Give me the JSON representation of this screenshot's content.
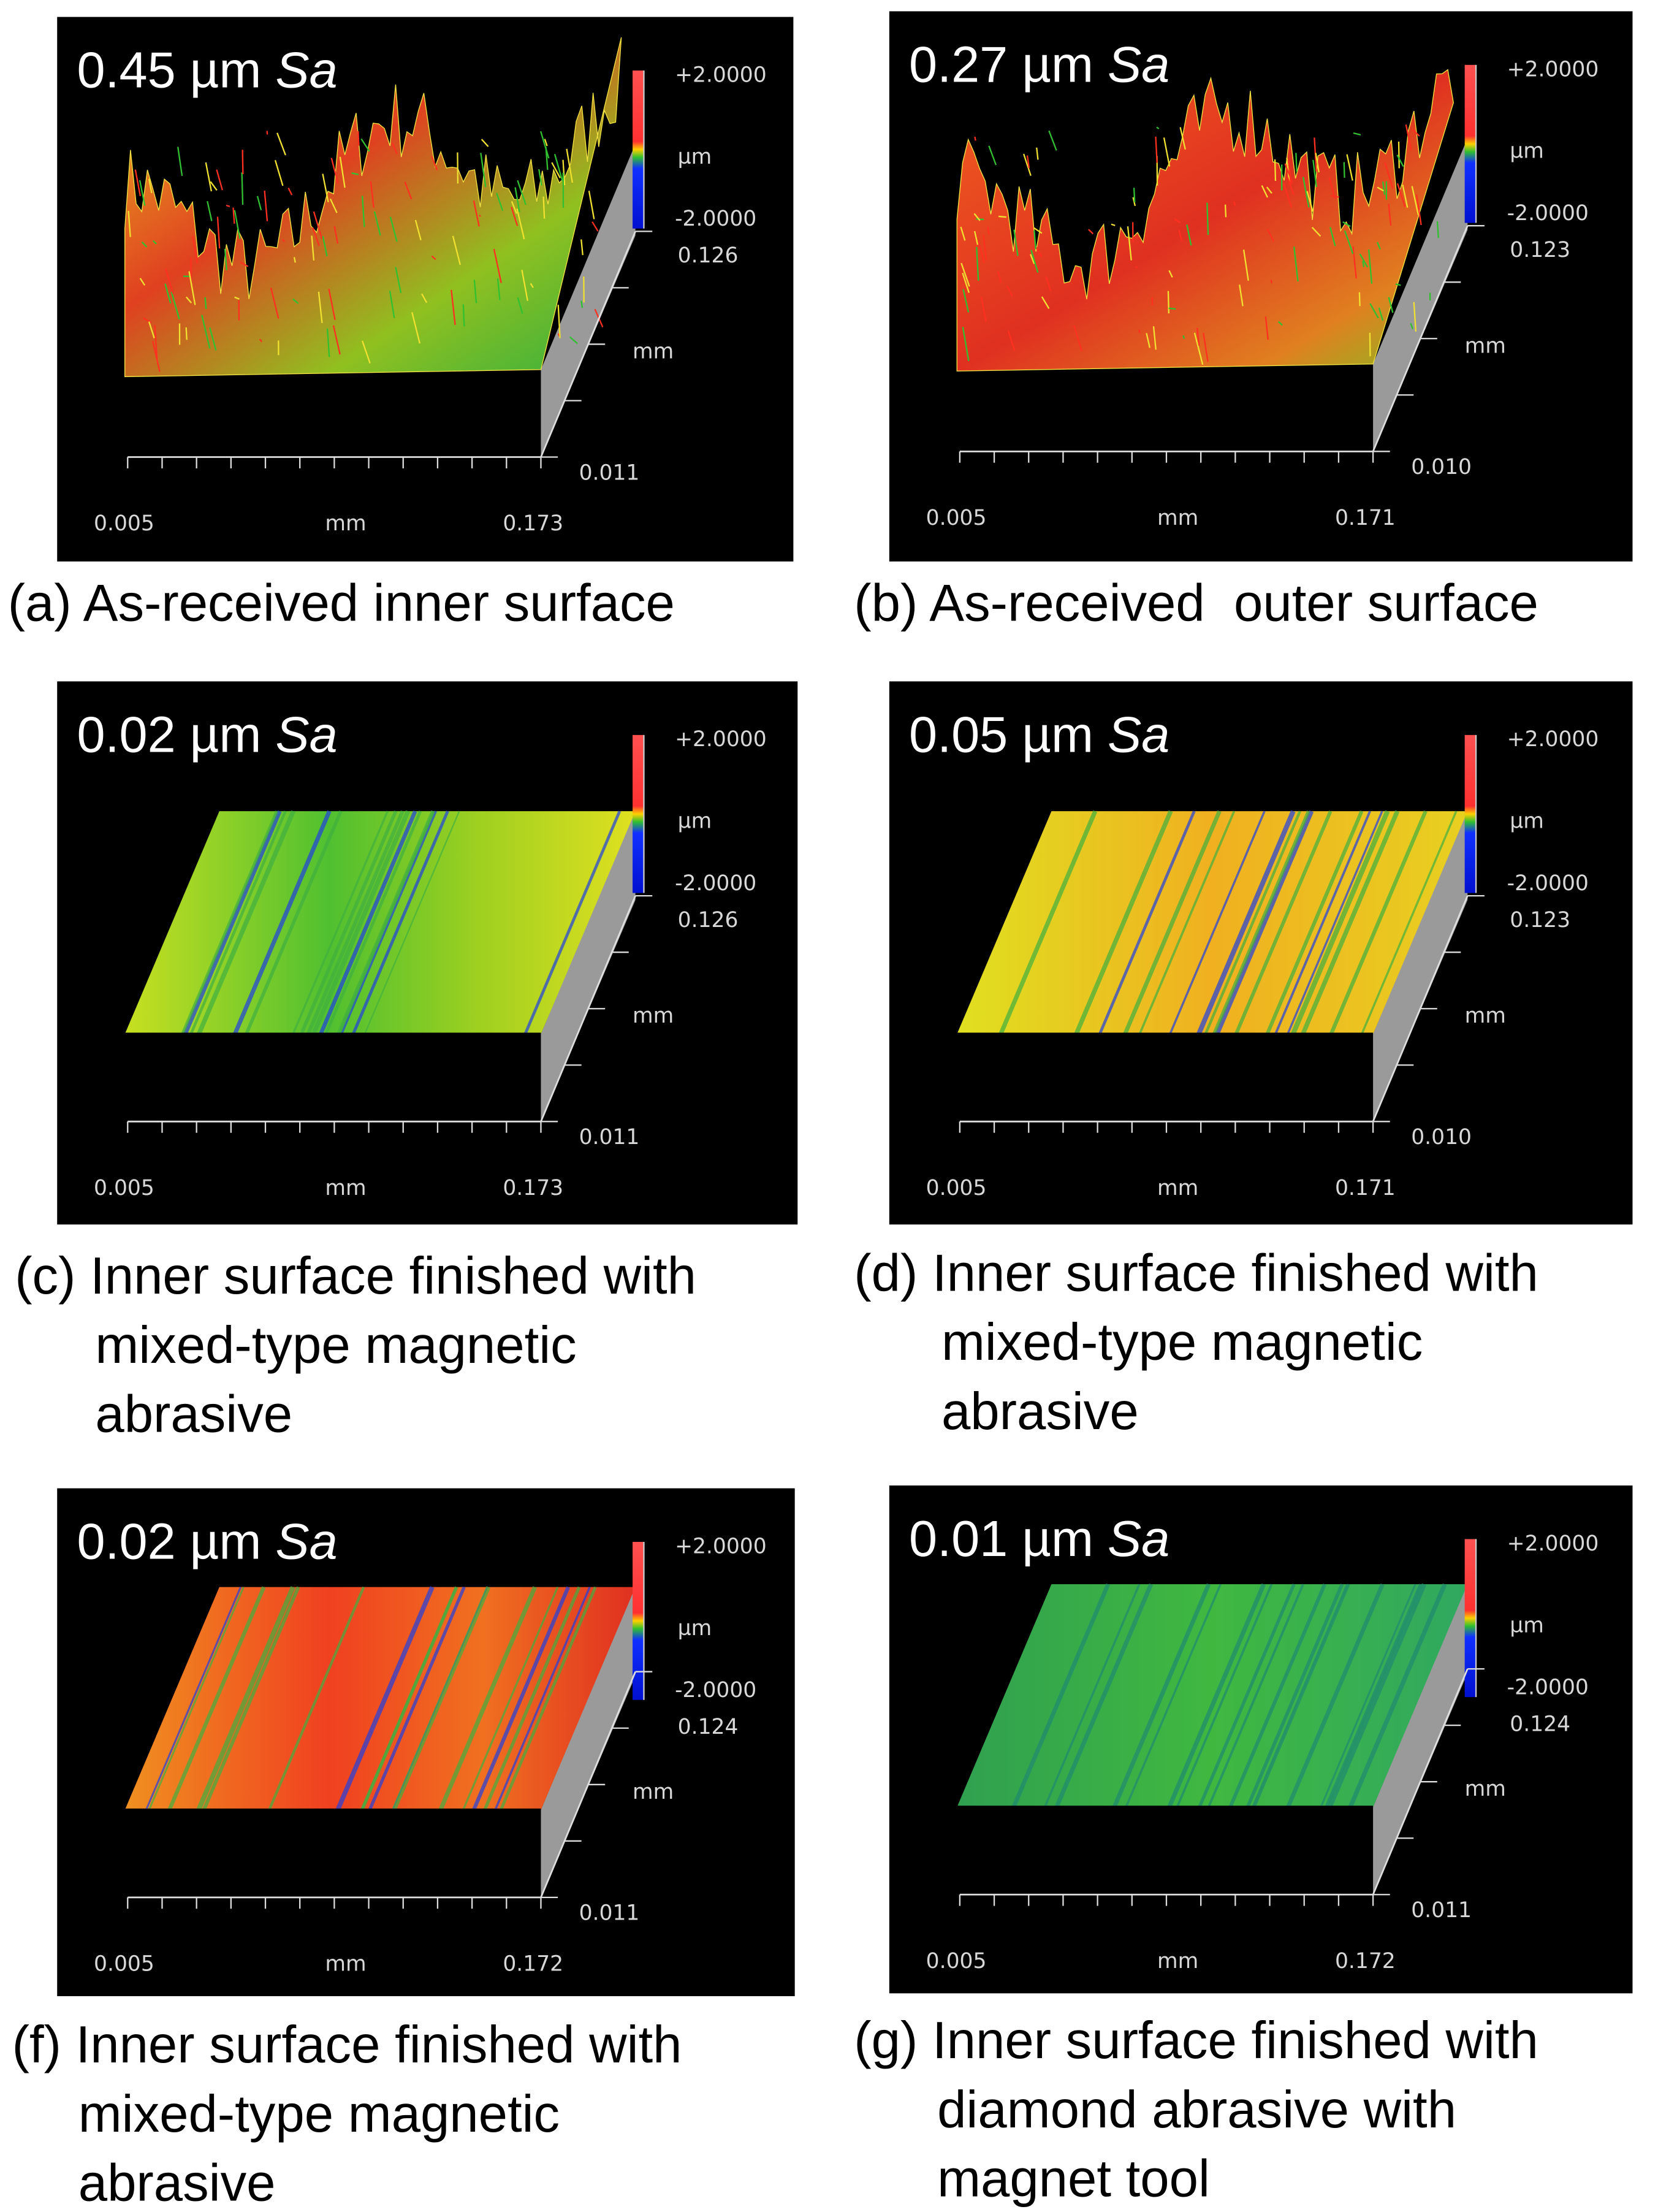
{
  "panels": [
    {
      "sa_value": "0.45 µm",
      "sa_unit": "Sa",
      "scale_max": "+2.0000",
      "scale_unit": "µm",
      "scale_min": "-2.0000",
      "z_max": "0.126",
      "z_unit": "mm",
      "z_min": "0.011",
      "x_min": "0.005",
      "x_unit": "mm",
      "x_max": "0.173",
      "caption": [
        "(a) As-received inner surface"
      ]
    },
    {
      "sa_value": "0.27 µm",
      "sa_unit": "Sa",
      "scale_max": "+2.0000",
      "scale_unit": "µm",
      "scale_min": "-2.0000",
      "z_max": "0.123",
      "z_unit": "mm",
      "z_min": "0.010",
      "x_min": "0.005",
      "x_unit": "mm",
      "x_max": "0.171",
      "caption": [
        "(b) As-received  outer surface"
      ]
    },
    {
      "sa_value": "0.02 µm",
      "sa_unit": "Sa",
      "scale_max": "+2.0000",
      "scale_unit": "µm",
      "scale_min": "-2.0000",
      "z_max": "0.126",
      "z_unit": "mm",
      "z_min": "0.011",
      "x_min": "0.005",
      "x_unit": "mm",
      "x_max": "0.173",
      "caption": [
        "(c) Inner surface finished with",
        "mixed-type magnetic",
        "abrasive"
      ]
    },
    {
      "sa_value": "0.05 µm",
      "sa_unit": "Sa",
      "scale_max": "+2.0000",
      "scale_unit": "µm",
      "scale_min": "-2.0000",
      "z_max": "0.123",
      "z_unit": "mm",
      "z_min": "0.010",
      "x_min": "0.005",
      "x_unit": "mm",
      "x_max": "0.171",
      "caption": [
        "(d) Inner surface finished with",
        "mixed-type magnetic",
        "abrasive"
      ]
    },
    {
      "sa_value": "0.02 µm",
      "sa_unit": "Sa",
      "scale_max": "+2.0000",
      "scale_unit": "µm",
      "scale_min": "-2.0000",
      "z_max": "0.124",
      "z_unit": "mm",
      "z_min": "0.011",
      "x_min": "0.005",
      "x_unit": "mm",
      "x_max": "0.172",
      "caption": [
        "(f) Inner surface finished with",
        "mixed-type magnetic",
        "abrasive"
      ]
    },
    {
      "sa_value": "0.01 µm",
      "sa_unit": "Sa",
      "scale_max": "+2.0000",
      "scale_unit": "µm",
      "scale_min": "-2.0000",
      "z_max": "0.124",
      "z_unit": "mm",
      "z_min": "0.011",
      "x_min": "0.005",
      "x_unit": "mm",
      "x_max": "0.172",
      "caption": [
        "(g) Inner surface finished with",
        "diamond abrasive with",
        "magnet tool"
      ]
    }
  ]
}
